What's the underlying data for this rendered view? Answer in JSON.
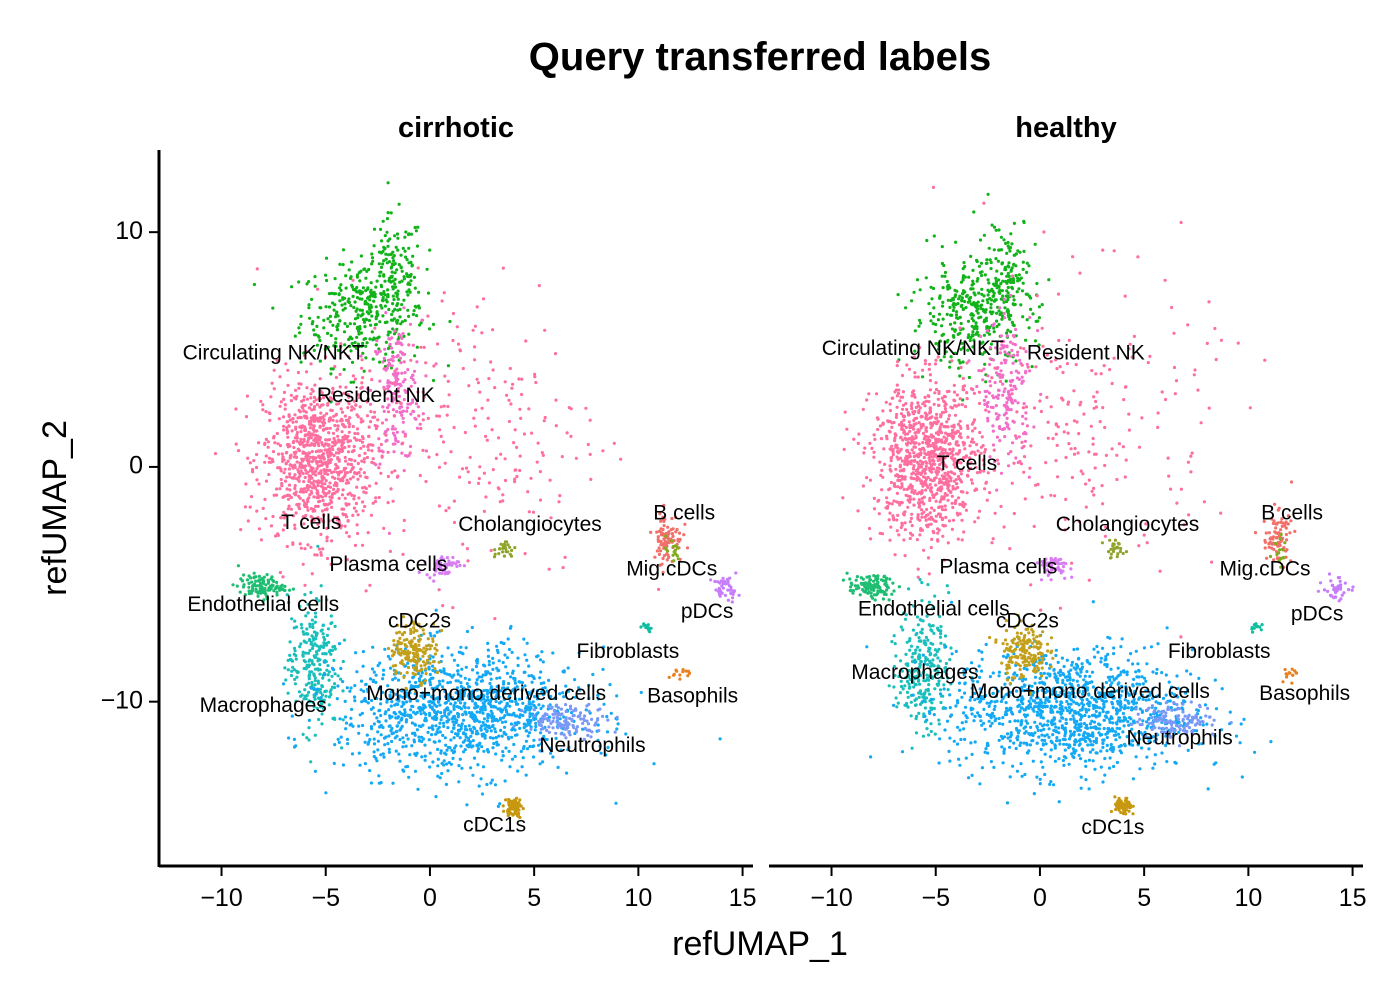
{
  "chart_data": {
    "type": "scatter",
    "title": "Query transferred labels",
    "xlabel": "refUMAP_1",
    "ylabel": "refUMAP_2",
    "xlim": [
      -13,
      15.5
    ],
    "ylim": [
      -17,
      13.5
    ],
    "x_ticks": [
      -10,
      -5,
      0,
      5,
      10,
      15
    ],
    "y_ticks": [
      -10,
      0,
      10
    ],
    "x_tick_labels": [
      "−10",
      "−5",
      "0",
      "5",
      "10",
      "15"
    ],
    "y_tick_labels": [
      "−10",
      "0",
      "10"
    ],
    "grid": false,
    "legend": "none",
    "facets": [
      {
        "name": "cirrhotic",
        "labels": [
          {
            "text": "Circulating NK/NKT",
            "x": -7.5,
            "y": 4.8
          },
          {
            "text": "Resident NK",
            "x": -2.6,
            "y": 3.0
          },
          {
            "text": "T cells",
            "x": -5.7,
            "y": -2.4
          },
          {
            "text": "Cholangiocytes",
            "x": 4.8,
            "y": -2.5
          },
          {
            "text": "B cells",
            "x": 12.2,
            "y": -2.0
          },
          {
            "text": "Plasma cells",
            "x": -2.0,
            "y": -4.2
          },
          {
            "text": "Mig.cDCs",
            "x": 11.6,
            "y": -4.4
          },
          {
            "text": "Endothelial cells",
            "x": -8.0,
            "y": -5.9
          },
          {
            "text": "pDCs",
            "x": 13.3,
            "y": -6.2
          },
          {
            "text": "cDC2s",
            "x": -0.5,
            "y": -6.6
          },
          {
            "text": "Fibroblasts",
            "x": 9.5,
            "y": -7.9
          },
          {
            "text": "Mono+mono derived cells",
            "x": 2.7,
            "y": -9.7
          },
          {
            "text": "Basophils",
            "x": 12.6,
            "y": -9.8
          },
          {
            "text": "Macrophages",
            "x": -8.0,
            "y": -10.2
          },
          {
            "text": "Neutrophils",
            "x": 7.8,
            "y": -11.9
          },
          {
            "text": "cDC1s",
            "x": 3.1,
            "y": -15.3
          }
        ]
      },
      {
        "name": "healthy",
        "labels": [
          {
            "text": "Circulating NK/NKT",
            "x": -6.1,
            "y": 5.0
          },
          {
            "text": "Resident NK",
            "x": 2.2,
            "y": 4.8
          },
          {
            "text": "T cells",
            "x": -3.5,
            "y": 0.1
          },
          {
            "text": "Cholangiocytes",
            "x": 4.2,
            "y": -2.5
          },
          {
            "text": "B cells",
            "x": 12.1,
            "y": -2.0
          },
          {
            "text": "Plasma cells",
            "x": -2.0,
            "y": -4.3
          },
          {
            "text": "Mig.cDCs",
            "x": 10.8,
            "y": -4.4
          },
          {
            "text": "Endothelial cells",
            "x": -5.1,
            "y": -6.1
          },
          {
            "text": "pDCs",
            "x": 13.3,
            "y": -6.3
          },
          {
            "text": "cDC2s",
            "x": -0.6,
            "y": -6.6
          },
          {
            "text": "Fibroblasts",
            "x": 8.6,
            "y": -7.9
          },
          {
            "text": "Macrophages",
            "x": -6.0,
            "y": -8.8
          },
          {
            "text": "Mono+mono derived cells",
            "x": 2.4,
            "y": -9.6
          },
          {
            "text": "Basophils",
            "x": 12.7,
            "y": -9.7
          },
          {
            "text": "Neutrophils",
            "x": 6.7,
            "y": -11.6
          },
          {
            "text": "cDC1s",
            "x": 3.5,
            "y": -15.4
          }
        ]
      }
    ],
    "clusters": [
      {
        "name": "Circulating NK/NKT",
        "color": "#12b31a",
        "x": -3.2,
        "y": 6.5,
        "sx": 1.5,
        "sy": 1.1,
        "n": 340,
        "hx": -1.7,
        "hy": 8.5,
        "hsx": 0.7,
        "hsy": 1.1,
        "hn": 120
      },
      {
        "name": "Resident NK",
        "color": "#f36ec8",
        "x": -1.6,
        "y": 3.2,
        "sx": 0.6,
        "sy": 1.5,
        "n": 190
      },
      {
        "name": "T cells",
        "color": "#fe6f9f",
        "x": -5.4,
        "y": 0.3,
        "sx": 1.3,
        "sy": 1.7,
        "n": 950,
        "hx": 2.2,
        "hy": 1.7,
        "hsx": 3.1,
        "hsy": 3.2,
        "hn": 220
      },
      {
        "name": "B cells",
        "color": "#f26f6a",
        "x": 11.4,
        "y": -3.0,
        "sx": 0.35,
        "sy": 0.55,
        "n": 85
      },
      {
        "name": "Mig.cDCs",
        "color": "#80ab1a",
        "x": 11.6,
        "y": -3.6,
        "sx": 0.2,
        "sy": 0.3,
        "n": 15
      },
      {
        "name": "Plasma cells",
        "color": "#d87cf2",
        "x": 0.6,
        "y": -4.2,
        "sx": 0.4,
        "sy": 0.22,
        "n": 60
      },
      {
        "name": "pDCs",
        "color": "#c77cfb",
        "x": 14.2,
        "y": -5.2,
        "sx": 0.3,
        "sy": 0.25,
        "n": 40
      },
      {
        "name": "Cholangiocytes",
        "color": "#8fa42a",
        "x": 3.6,
        "y": -3.5,
        "sx": 0.25,
        "sy": 0.2,
        "n": 25
      },
      {
        "name": "Endothelial cells",
        "color": "#1fbe72",
        "x": -8.1,
        "y": -5.1,
        "sx": 0.55,
        "sy": 0.25,
        "n": 110
      },
      {
        "name": "Macrophages",
        "color": "#1abfbb",
        "x": -5.6,
        "y": -8.4,
        "sx": 0.6,
        "sy": 1.4,
        "n": 260
      },
      {
        "name": "Mono+mono derived cells",
        "color": "#14a9f4",
        "x": 1.5,
        "y": -10.4,
        "sx": 2.9,
        "sy": 1.3,
        "n": 1200
      },
      {
        "name": "Neutrophils",
        "color": "#7c98f7",
        "x": 6.6,
        "y": -10.8,
        "sx": 1.0,
        "sy": 0.35,
        "n": 130
      },
      {
        "name": "cDC2s",
        "color": "#c3a01b",
        "x": -0.8,
        "y": -7.8,
        "sx": 0.55,
        "sy": 0.6,
        "n": 170
      },
      {
        "name": "cDC1s",
        "color": "#c7980f",
        "x": 4.0,
        "y": -14.5,
        "sx": 0.2,
        "sy": 0.2,
        "n": 70
      },
      {
        "name": "Fibroblasts",
        "color": "#10bda0",
        "x": 10.4,
        "y": -6.8,
        "sx": 0.15,
        "sy": 0.1,
        "n": 12
      },
      {
        "name": "Basophils",
        "color": "#e8811e",
        "x": 12.0,
        "y": -8.8,
        "sx": 0.25,
        "sy": 0.15,
        "n": 14
      }
    ]
  }
}
